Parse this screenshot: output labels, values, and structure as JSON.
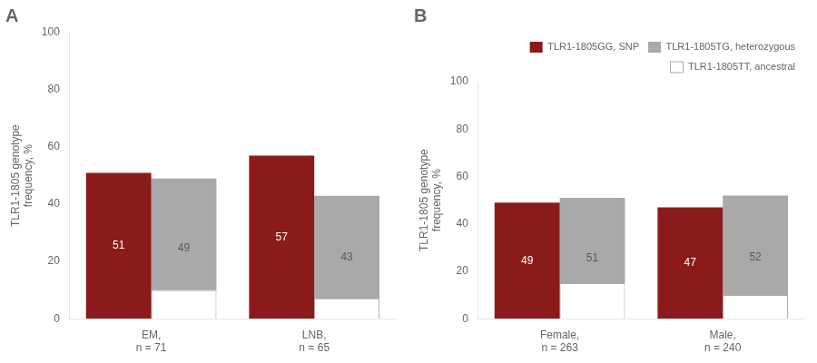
{
  "chart_data": [
    {
      "type": "bar",
      "title": "A",
      "categories": [
        "EM,\nn = 71",
        "LNB,\nn = 65"
      ],
      "series": [
        {
          "name": "TLR1-1805GG, SNP",
          "color": "#8B1A1A",
          "values": [
            51,
            57
          ]
        },
        {
          "name": "TLR1-1805TG, heterozygous",
          "color": "#A9A9A9",
          "values": [
            39,
            36
          ]
        },
        {
          "name": "TLR1-1805TT, ancestral",
          "color": "#FFFFFF",
          "values": [
            10,
            7
          ]
        }
      ],
      "totals": [
        49,
        43
      ],
      "ylabel": "TLR1-1805 genotype\nfrequency, %",
      "ylim": [
        0,
        100
      ],
      "yticks": [
        0,
        20,
        40,
        60,
        80,
        100
      ],
      "stacked": true,
      "data_labels": true,
      "grid": false
    },
    {
      "type": "bar",
      "title": "B",
      "categories": [
        "Female,\nn = 263",
        "Male,\nn = 240"
      ],
      "series": [
        {
          "name": "TLR1-1805GG, SNP",
          "color": "#8B1A1A",
          "values": [
            49,
            47
          ]
        },
        {
          "name": "TLR1-1805TG, heterozygous",
          "color": "#A9A9A9",
          "values": [
            36,
            42
          ]
        },
        {
          "name": "TLR1-1805TT, ancestral",
          "color": "#FFFFFF",
          "values": [
            15,
            10
          ]
        }
      ],
      "totals": [
        51,
        52
      ],
      "ylabel": "TLR1-1805 genotype\nfrequency, %",
      "ylim": [
        0,
        100
      ],
      "yticks": [
        0,
        20,
        40,
        60,
        80,
        100
      ],
      "stacked": true,
      "data_labels": true,
      "grid": false,
      "legend": "upper right"
    }
  ]
}
